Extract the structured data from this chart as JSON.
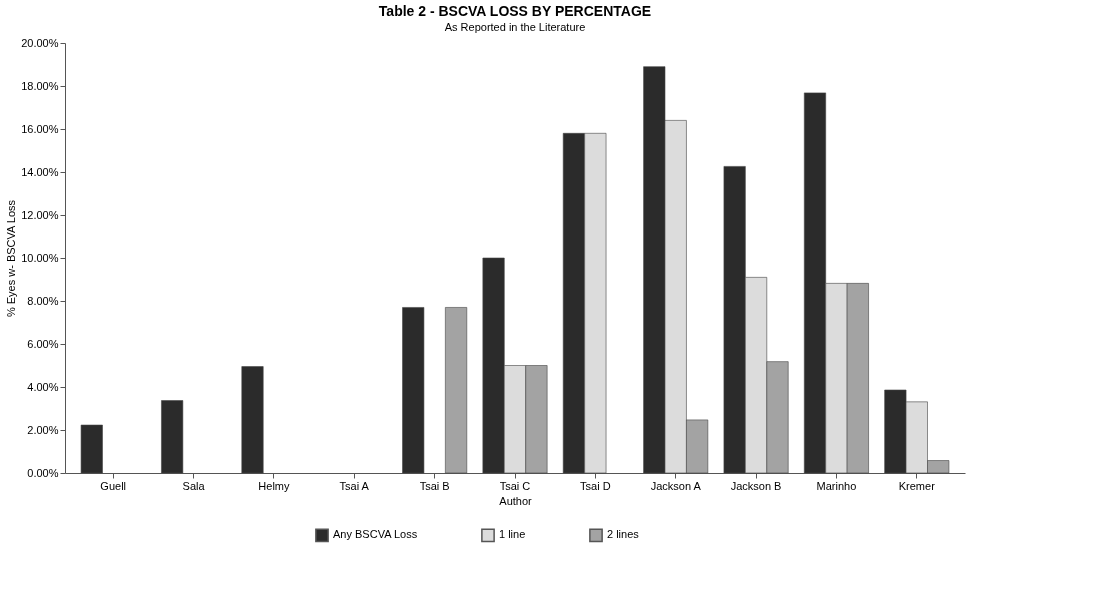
{
  "chart_data": {
    "type": "bar",
    "title": "Table 2 - BSCVA LOSS BY PERCENTAGE",
    "subtitle": "As Reported in the Literature",
    "xlabel": "Author",
    "ylabel": "% Eyes w- BSCVA Loss",
    "categories": [
      "Guell",
      "Sala",
      "Helmy",
      "Tsai A",
      "Tsai B",
      "Tsai C",
      "Tsai D",
      "Jackson A",
      "Jackson B",
      "Marinho",
      "Kremer"
    ],
    "series": [
      {
        "name": "Any BSCVA Loss",
        "color": "#2b2b2b",
        "values": [
          2.23,
          3.37,
          4.95,
          null,
          7.7,
          10.0,
          15.8,
          18.9,
          14.26,
          17.68,
          3.86
        ]
      },
      {
        "name": "1 line",
        "color": "#dcdcdc",
        "values": [
          null,
          null,
          null,
          null,
          null,
          5.0,
          15.8,
          16.4,
          9.1,
          8.82,
          3.31
        ]
      },
      {
        "name": "2 lines",
        "color": "#a3a3a3",
        "values": [
          null,
          null,
          null,
          null,
          7.7,
          5.0,
          null,
          2.47,
          5.18,
          8.82,
          0.58
        ]
      }
    ],
    "ylim": [
      0,
      20
    ],
    "yticks": [
      {
        "value": 0,
        "label": "0.00%"
      },
      {
        "value": 2,
        "label": "2.00%"
      },
      {
        "value": 4,
        "label": "4.00%"
      },
      {
        "value": 6,
        "label": "6.00%"
      },
      {
        "value": 8,
        "label": "8.00%"
      },
      {
        "value": 10,
        "label": "10.00%"
      },
      {
        "value": 12,
        "label": "12.00%"
      },
      {
        "value": 14,
        "label": "14.00%"
      },
      {
        "value": 16,
        "label": "16.00%"
      },
      {
        "value": 18,
        "label": "18.00%"
      },
      {
        "value": 20,
        "label": "20.00%"
      }
    ],
    "grid": false,
    "legend": "bottom"
  }
}
